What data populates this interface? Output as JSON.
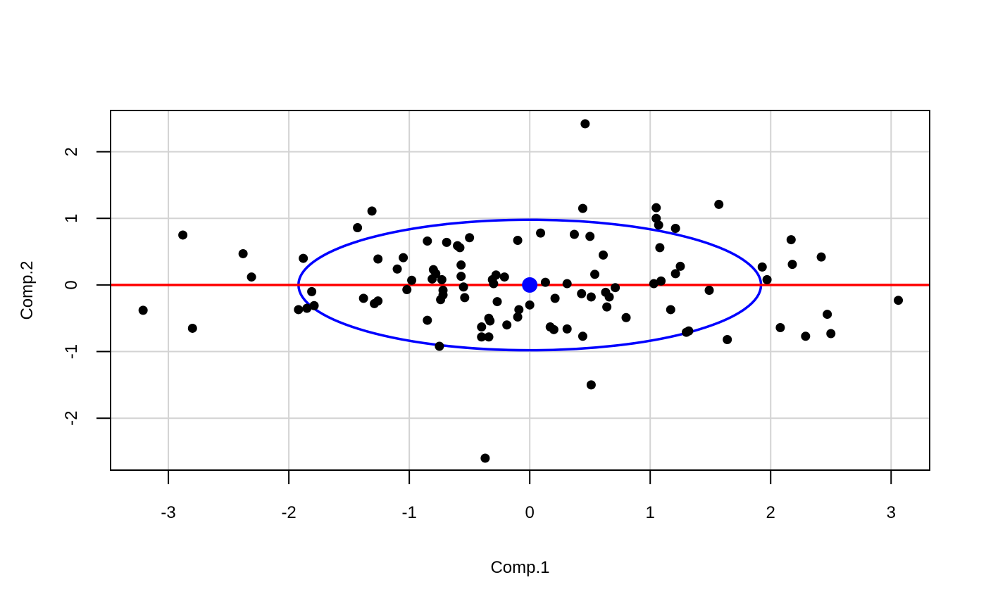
{
  "chart_data": {
    "type": "scatter",
    "title": "",
    "xlabel": "Comp.1",
    "ylabel": "Comp.2",
    "xlim": [
      -3.48,
      3.32
    ],
    "ylim": [
      -2.78,
      2.62
    ],
    "x_ticks": [
      -3,
      -2,
      -1,
      0,
      1,
      2,
      3
    ],
    "y_ticks": [
      -2,
      -1,
      0,
      1,
      2
    ],
    "grid": true,
    "grid_color": "#d3d3d3",
    "points_color": "#000000",
    "points": [
      [
        0.46,
        2.42
      ],
      [
        1.57,
        1.21
      ],
      [
        -1.31,
        1.11
      ],
      [
        0.44,
        1.15
      ],
      [
        1.05,
        1.16
      ],
      [
        1.05,
        1.0
      ],
      [
        1.07,
        0.9
      ],
      [
        -1.43,
        0.86
      ],
      [
        1.21,
        0.85
      ],
      [
        -2.88,
        0.75
      ],
      [
        0.09,
        0.78
      ],
      [
        0.37,
        0.76
      ],
      [
        0.5,
        0.73
      ],
      [
        -0.5,
        0.71
      ],
      [
        2.17,
        0.68
      ],
      [
        -0.1,
        0.67
      ],
      [
        -0.85,
        0.66
      ],
      [
        -0.69,
        0.64
      ],
      [
        -0.6,
        0.59
      ],
      [
        -0.58,
        0.56
      ],
      [
        1.08,
        0.56
      ],
      [
        -2.38,
        0.47
      ],
      [
        0.61,
        0.45
      ],
      [
        2.42,
        0.42
      ],
      [
        -1.05,
        0.41
      ],
      [
        -1.88,
        0.4
      ],
      [
        -1.26,
        0.39
      ],
      [
        2.18,
        0.31
      ],
      [
        -0.57,
        0.3
      ],
      [
        1.25,
        0.28
      ],
      [
        1.93,
        0.27
      ],
      [
        -1.1,
        0.24
      ],
      [
        -0.8,
        0.23
      ],
      [
        -0.78,
        0.17
      ],
      [
        0.54,
        0.16
      ],
      [
        1.21,
        0.17
      ],
      [
        -0.28,
        0.15
      ],
      [
        -0.57,
        0.13
      ],
      [
        -2.31,
        0.12
      ],
      [
        -0.21,
        0.12
      ],
      [
        -0.81,
        0.09
      ],
      [
        -0.73,
        0.08
      ],
      [
        -0.98,
        0.07
      ],
      [
        -0.31,
        0.08
      ],
      [
        1.97,
        0.08
      ],
      [
        1.09,
        0.06
      ],
      [
        0.13,
        0.04
      ],
      [
        -0.3,
        0.02
      ],
      [
        0.31,
        0.02
      ],
      [
        1.03,
        0.02
      ],
      [
        -0.55,
        -0.03
      ],
      [
        0.71,
        -0.04
      ],
      [
        -1.02,
        -0.07
      ],
      [
        -0.72,
        -0.08
      ],
      [
        1.49,
        -0.08
      ],
      [
        -1.81,
        -0.1
      ],
      [
        0.63,
        -0.11
      ],
      [
        0.43,
        -0.13
      ],
      [
        -0.72,
        -0.15
      ],
      [
        0.51,
        -0.18
      ],
      [
        0.66,
        -0.18
      ],
      [
        -0.54,
        -0.19
      ],
      [
        -1.38,
        -0.2
      ],
      [
        0.21,
        -0.2
      ],
      [
        -0.74,
        -0.22
      ],
      [
        -1.26,
        -0.24
      ],
      [
        3.06,
        -0.23
      ],
      [
        -0.27,
        -0.25
      ],
      [
        -1.29,
        -0.28
      ],
      [
        0.0,
        -0.3
      ],
      [
        -1.79,
        -0.31
      ],
      [
        0.64,
        -0.33
      ],
      [
        -1.85,
        -0.35
      ],
      [
        -1.92,
        -0.37
      ],
      [
        1.17,
        -0.37
      ],
      [
        -3.21,
        -0.38
      ],
      [
        -0.09,
        -0.37
      ],
      [
        2.47,
        -0.44
      ],
      [
        -0.1,
        -0.48
      ],
      [
        0.8,
        -0.49
      ],
      [
        -0.34,
        -0.5
      ],
      [
        -0.33,
        -0.54
      ],
      [
        -0.85,
        -0.53
      ],
      [
        -0.19,
        -0.6
      ],
      [
        0.17,
        -0.63
      ],
      [
        -0.4,
        -0.63
      ],
      [
        2.08,
        -0.64
      ],
      [
        -2.8,
        -0.65
      ],
      [
        0.2,
        -0.67
      ],
      [
        0.31,
        -0.66
      ],
      [
        1.3,
        -0.71
      ],
      [
        1.32,
        -0.69
      ],
      [
        2.5,
        -0.73
      ],
      [
        -0.4,
        -0.78
      ],
      [
        -0.34,
        -0.78
      ],
      [
        2.29,
        -0.77
      ],
      [
        0.44,
        -0.77
      ],
      [
        1.64,
        -0.82
      ],
      [
        -0.75,
        -0.92
      ],
      [
        0.51,
        -1.5
      ],
      [
        -0.37,
        -2.6
      ]
    ],
    "center": {
      "x": 0.0,
      "y": 0.0,
      "color": "#0000ff"
    },
    "ellipse": {
      "cx": 0.0,
      "cy": 0.0,
      "rx": 1.92,
      "ry": 0.98,
      "color": "#0000ff"
    },
    "hline": {
      "y": 0.0,
      "color": "#ff0000"
    }
  }
}
